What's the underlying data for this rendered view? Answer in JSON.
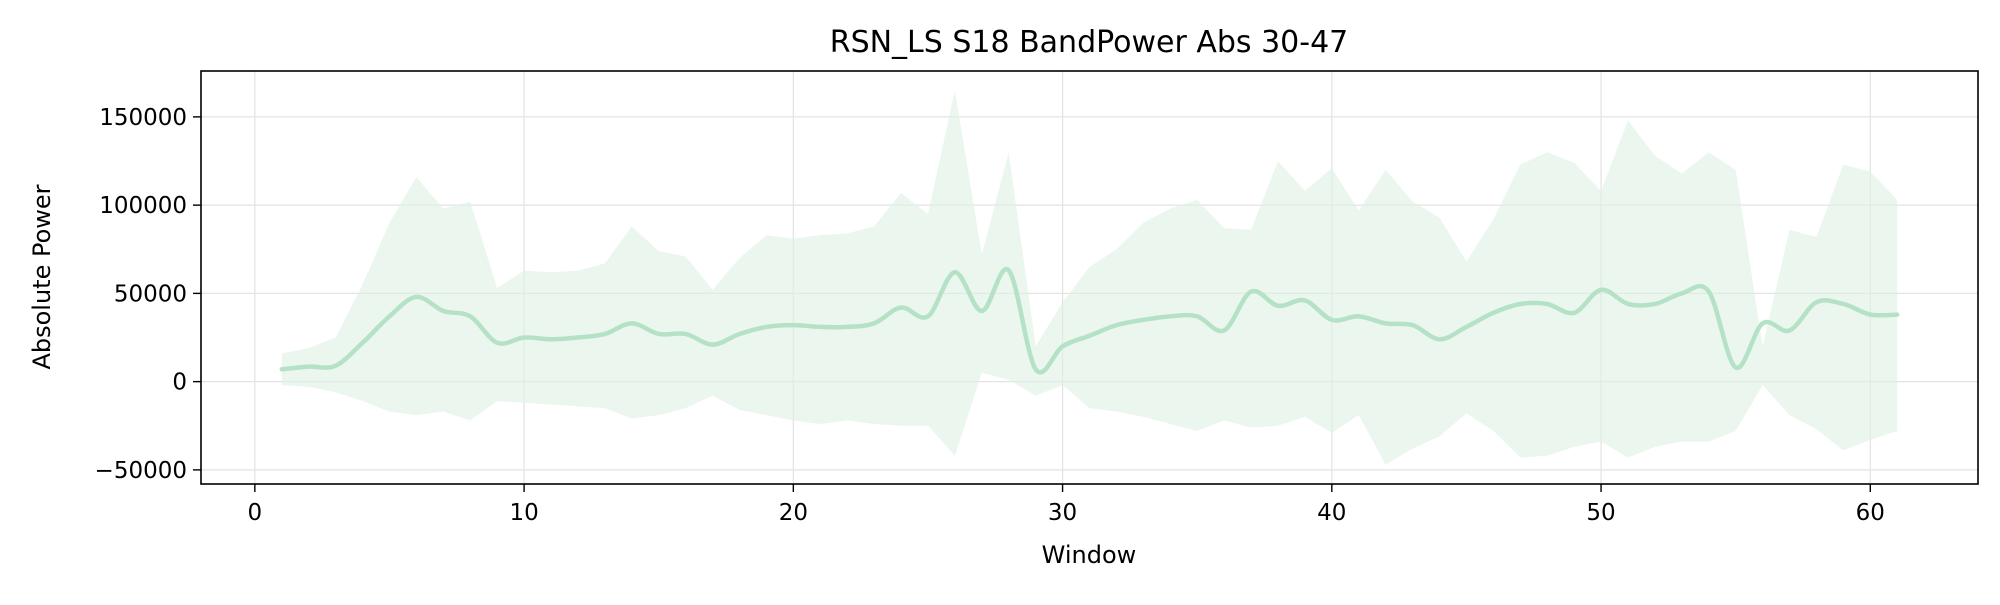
{
  "chart_data": {
    "type": "area",
    "title": "RSN_LS S18 BandPower Abs 30-47",
    "xlabel": "Window",
    "ylabel": "Absolute Power",
    "xlim": [
      -2,
      64
    ],
    "ylim": [
      -58000,
      176000
    ],
    "xticks": [
      0,
      10,
      20,
      30,
      40,
      50,
      60
    ],
    "yticks": [
      -50000,
      0,
      50000,
      100000,
      150000
    ],
    "ytick_labels": [
      "−50000",
      "0",
      "50000",
      "100000",
      "150000"
    ],
    "grid": true,
    "legend": "none",
    "colors": {
      "line": "#b5e2c6",
      "band": "#ddf1e3",
      "grid": "#e3e3e3"
    },
    "series": [
      {
        "x": [
          1,
          2,
          3,
          4,
          5,
          6,
          7,
          8,
          9,
          10,
          11,
          12,
          13,
          14,
          15,
          16,
          17,
          18,
          19,
          20,
          21,
          22,
          23,
          24,
          25,
          26,
          27,
          28,
          29,
          30,
          31,
          32,
          33,
          34,
          35,
          36,
          37,
          38,
          39,
          40,
          41,
          42,
          43,
          44,
          45,
          46,
          47,
          48,
          49,
          50,
          51,
          52,
          53,
          54,
          55,
          56,
          57,
          58,
          59,
          60,
          61
        ],
        "y": [
          7000,
          8500,
          9000,
          22000,
          37000,
          48000,
          40000,
          37000,
          22000,
          25000,
          24000,
          25000,
          27000,
          33000,
          27000,
          27000,
          21000,
          27000,
          31000,
          32000,
          31000,
          31000,
          33000,
          42000,
          37000,
          62000,
          40000,
          63000,
          7000,
          20000,
          26000,
          32000,
          35000,
          37000,
          37000,
          29000,
          51000,
          43000,
          46000,
          35000,
          37000,
          33000,
          32000,
          24000,
          31000,
          39000,
          44000,
          44000,
          39000,
          52000,
          44000,
          44000,
          50000,
          51000,
          8000,
          33000,
          29000,
          45000,
          44000,
          38000,
          38000
        ],
        "upper": [
          16000,
          19000,
          25000,
          55000,
          90000,
          116000,
          98000,
          102000,
          53000,
          63000,
          62000,
          63000,
          67000,
          88000,
          74000,
          71000,
          52000,
          70000,
          83000,
          81000,
          83000,
          84000,
          88000,
          107000,
          95000,
          165000,
          72000,
          130000,
          20000,
          45000,
          65000,
          75000,
          90000,
          98000,
          103000,
          87000,
          86000,
          125000,
          108000,
          121000,
          97000,
          120000,
          102000,
          93000,
          68000,
          92000,
          123000,
          130000,
          124000,
          108000,
          148000,
          128000,
          118000,
          130000,
          120000,
          20000,
          86000,
          82000,
          123000,
          119000,
          103000
        ],
        "lower": [
          -2000,
          -3000,
          -6000,
          -11000,
          -17000,
          -19000,
          -17000,
          -22000,
          -11000,
          -12000,
          -13000,
          -14000,
          -15000,
          -21000,
          -19000,
          -15000,
          -8000,
          -16000,
          -19000,
          -22000,
          -24000,
          -22000,
          -24000,
          -25000,
          -25000,
          -42000,
          5000,
          1000,
          -8000,
          -2000,
          -15000,
          -17000,
          -20000,
          -24000,
          -28000,
          -22000,
          -26000,
          -25000,
          -20000,
          -29000,
          -19000,
          -47000,
          -38000,
          -31000,
          -18000,
          -28000,
          -43000,
          -42000,
          -37000,
          -34000,
          -43000,
          -37000,
          -34000,
          -34000,
          -28000,
          -2000,
          -19000,
          -27000,
          -39000,
          -33000,
          -28000
        ]
      }
    ]
  }
}
